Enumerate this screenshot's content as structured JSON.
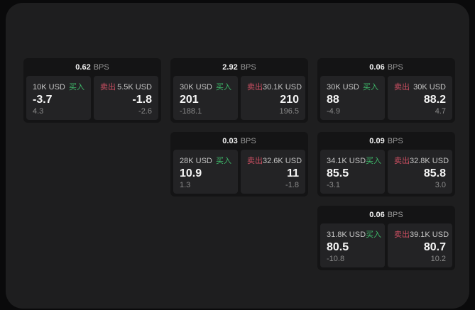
{
  "labels": {
    "bps_unit": "BPS",
    "buy": "买入",
    "sell": "卖出"
  },
  "colors": {
    "buy-green": "#3eb96a",
    "sell-red": "#cc4f62",
    "panel-bg": "#1e1e1f",
    "card-bg": "#141415",
    "subpanel-bg": "#232325"
  },
  "cards": [
    {
      "bps": "0.62",
      "buy": {
        "amount": "10K USD",
        "price": "-3.7",
        "change": "4.3"
      },
      "sell": {
        "amount": "5.5K USD",
        "price": "-1.8",
        "change": "-2.6"
      }
    },
    {
      "bps": "2.92",
      "buy": {
        "amount": "30K USD",
        "price": "201",
        "change": "-188.1"
      },
      "sell": {
        "amount": "30.1K USD",
        "price": "210",
        "change": "196.5"
      }
    },
    {
      "bps": "0.06",
      "buy": {
        "amount": "30K USD",
        "price": "88",
        "change": "-4.9"
      },
      "sell": {
        "amount": "30K USD",
        "price": "88.2",
        "change": "4.7"
      }
    },
    {
      "bps": "0.03",
      "buy": {
        "amount": "28K USD",
        "price": "10.9",
        "change": "1.3"
      },
      "sell": {
        "amount": "32.6K USD",
        "price": "11",
        "change": "-1.8"
      }
    },
    {
      "bps": "0.09",
      "buy": {
        "amount": "34.1K USD",
        "price": "85.5",
        "change": "-3.1"
      },
      "sell": {
        "amount": "32.8K USD",
        "price": "85.8",
        "change": "3.0"
      }
    },
    {
      "bps": "0.06",
      "buy": {
        "amount": "31.8K USD",
        "price": "80.5",
        "change": "-10.8"
      },
      "sell": {
        "amount": "39.1K USD",
        "price": "80.7",
        "change": "10.2"
      }
    }
  ]
}
